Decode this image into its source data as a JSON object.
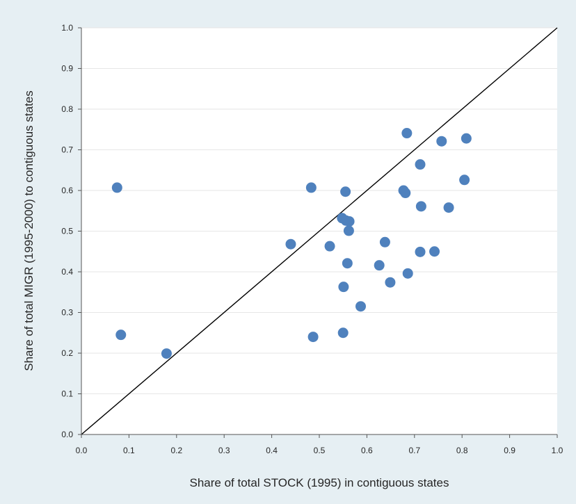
{
  "chart_data": {
    "type": "scatter",
    "title": "",
    "xlabel": "Share of total STOCK (1995) in contiguous states",
    "ylabel": "Share of total MIGR (1995-2000) to contiguous states",
    "xlim": [
      0.0,
      1.0
    ],
    "ylim": [
      0.0,
      1.0
    ],
    "xticks": [
      "0.0",
      "0.1",
      "0.2",
      "0.3",
      "0.4",
      "0.5",
      "0.6",
      "0.7",
      "0.8",
      "0.9",
      "1.0"
    ],
    "yticks": [
      "0.0",
      "0.1",
      "0.2",
      "0.3",
      "0.4",
      "0.5",
      "0.6",
      "0.7",
      "0.8",
      "0.9",
      "1.0"
    ],
    "grid": "horizontal",
    "legend": "none",
    "reference_line": {
      "type": "diagonal",
      "from": [
        0.0,
        0.0
      ],
      "to": [
        1.0,
        1.0
      ]
    },
    "marker_color": "#4f81bd",
    "points": [
      {
        "x": 0.075,
        "y": 0.607
      },
      {
        "x": 0.083,
        "y": 0.245
      },
      {
        "x": 0.179,
        "y": 0.199
      },
      {
        "x": 0.44,
        "y": 0.468
      },
      {
        "x": 0.483,
        "y": 0.607
      },
      {
        "x": 0.487,
        "y": 0.24
      },
      {
        "x": 0.522,
        "y": 0.463
      },
      {
        "x": 0.548,
        "y": 0.532
      },
      {
        "x": 0.55,
        "y": 0.25
      },
      {
        "x": 0.551,
        "y": 0.363
      },
      {
        "x": 0.555,
        "y": 0.597
      },
      {
        "x": 0.556,
        "y": 0.526
      },
      {
        "x": 0.559,
        "y": 0.421
      },
      {
        "x": 0.562,
        "y": 0.501
      },
      {
        "x": 0.563,
        "y": 0.524
      },
      {
        "x": 0.587,
        "y": 0.315
      },
      {
        "x": 0.626,
        "y": 0.416
      },
      {
        "x": 0.638,
        "y": 0.473
      },
      {
        "x": 0.649,
        "y": 0.374
      },
      {
        "x": 0.677,
        "y": 0.6
      },
      {
        "x": 0.681,
        "y": 0.594
      },
      {
        "x": 0.684,
        "y": 0.741
      },
      {
        "x": 0.686,
        "y": 0.396
      },
      {
        "x": 0.712,
        "y": 0.664
      },
      {
        "x": 0.712,
        "y": 0.449
      },
      {
        "x": 0.714,
        "y": 0.561
      },
      {
        "x": 0.742,
        "y": 0.45
      },
      {
        "x": 0.757,
        "y": 0.721
      },
      {
        "x": 0.772,
        "y": 0.558
      },
      {
        "x": 0.805,
        "y": 0.626
      },
      {
        "x": 0.809,
        "y": 0.728
      }
    ]
  }
}
